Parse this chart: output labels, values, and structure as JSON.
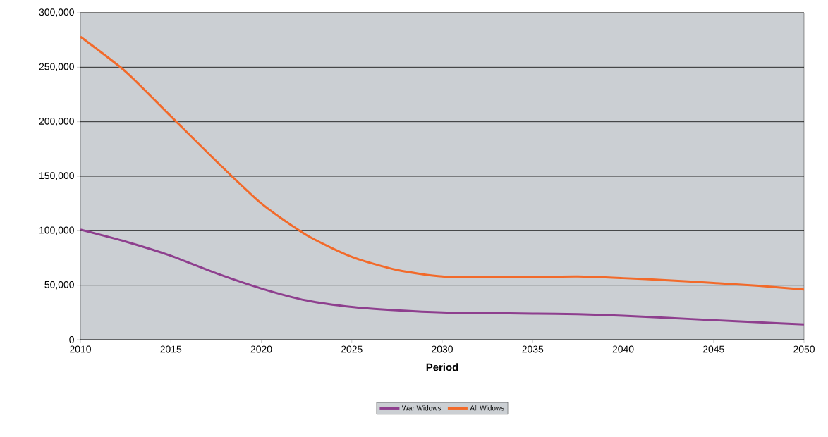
{
  "chart_data": {
    "type": "line",
    "xlabel": "Period",
    "x": [
      2010,
      2012.5,
      2015,
      2017.5,
      2020,
      2022.5,
      2025,
      2027.5,
      2030,
      2032.5,
      2035,
      2037.5,
      2040,
      2042.5,
      2045,
      2047.5,
      2050
    ],
    "series": [
      {
        "name": "War Widows",
        "color": "#8e3f8e",
        "values": [
          101000,
          90000,
          77000,
          61000,
          47000,
          36000,
          30000,
          27000,
          25000,
          24500,
          24000,
          23500,
          22000,
          20000,
          18000,
          16000,
          14000
        ]
      },
      {
        "name": "All Widows",
        "color": "#f26a2a",
        "values": [
          278000,
          246000,
          205000,
          164000,
          125000,
          96000,
          76000,
          64000,
          58000,
          57500,
          57500,
          58000,
          56500,
          54500,
          52000,
          49500,
          46000
        ]
      }
    ],
    "xlim": [
      2010,
      2050
    ],
    "xticks": [
      2010,
      2015,
      2020,
      2025,
      2030,
      2035,
      2040,
      2045,
      2050
    ],
    "ylim": [
      0,
      300000
    ],
    "yticks": [
      {
        "value": 0,
        "label": "0"
      },
      {
        "value": 50000,
        "label": "50,000"
      },
      {
        "value": 100000,
        "label": "100,000"
      },
      {
        "value": 150000,
        "label": "150,000"
      },
      {
        "value": 200000,
        "label": "200,000"
      },
      {
        "value": 250000,
        "label": "250,000"
      },
      {
        "value": 300000,
        "label": "300,000"
      }
    ],
    "grid": "y",
    "legend": "bottom",
    "marker": "none",
    "line_style": "solid"
  }
}
